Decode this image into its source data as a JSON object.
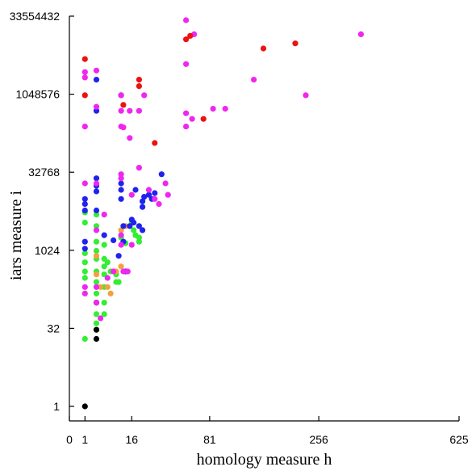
{
  "chart_data": {
    "type": "scatter",
    "title": "",
    "xlabel": "homology measure  h",
    "ylabel": "iars measure  i",
    "x_scale": "sqrt",
    "y_scale": "log2",
    "xlim": [
      0,
      625
    ],
    "ylim": [
      1,
      33554432
    ],
    "x_ticks": [
      0,
      1,
      16,
      81,
      256,
      625
    ],
    "y_ticks": [
      1,
      32,
      1024,
      32768,
      1048576,
      33554432
    ],
    "grid": false,
    "legend": "none",
    "colors": {
      "red": "#ee1111",
      "magenta": "#f026f0",
      "blue": "#2222ee",
      "green": "#33ee33",
      "orange": "#f5a040",
      "black": "#000000"
    },
    "series": [
      {
        "color": "red",
        "points": [
          [
            1,
            5000000
          ],
          [
            1,
            1000000
          ],
          [
            12,
            650000
          ],
          [
            20,
            2000000
          ],
          [
            20,
            1500000
          ],
          [
            30,
            120000
          ],
          [
            56,
            12000000
          ],
          [
            60,
            14000000
          ],
          [
            74,
            350000
          ],
          [
            155,
            8000000
          ],
          [
            210,
            10000000
          ]
        ]
      },
      {
        "color": "magenta",
        "points": [
          [
            56,
            28000000
          ],
          [
            56,
            4000000
          ],
          [
            64,
            15000000
          ],
          [
            350,
            15000000
          ],
          [
            1,
            2800000
          ],
          [
            1,
            2200000
          ],
          [
            1,
            250000
          ],
          [
            1,
            20000
          ],
          [
            3,
            3000000
          ],
          [
            3,
            600000
          ],
          [
            3,
            20000
          ],
          [
            3,
            2500
          ],
          [
            11,
            1000000
          ],
          [
            11,
            500000
          ],
          [
            11,
            250000
          ],
          [
            11,
            30000
          ],
          [
            11,
            25000
          ],
          [
            11,
            2000
          ],
          [
            11,
            1300
          ],
          [
            12,
            240000
          ],
          [
            15,
            500000
          ],
          [
            15,
            150000
          ],
          [
            16,
            1300
          ],
          [
            20,
            40000
          ],
          [
            20,
            500000
          ],
          [
            23,
            1000000
          ],
          [
            26,
            15000
          ],
          [
            30,
            10000
          ],
          [
            33,
            8000
          ],
          [
            38,
            20000
          ],
          [
            40,
            12000
          ],
          [
            56,
            450000
          ],
          [
            56,
            250000
          ],
          [
            62,
            350000
          ],
          [
            85,
            550000
          ],
          [
            100,
            550000
          ],
          [
            140,
            2000000
          ],
          [
            230,
            1000000
          ],
          [
            1,
            200
          ],
          [
            1,
            150
          ],
          [
            3,
            200
          ],
          [
            3,
            100
          ],
          [
            4,
            50
          ],
          [
            6,
            300
          ],
          [
            8,
            400
          ],
          [
            12,
            400
          ],
          [
            14,
            400
          ],
          [
            5,
            5000
          ],
          [
            16,
            12000
          ]
        ]
      },
      {
        "color": "blue",
        "points": [
          [
            1,
            10000
          ],
          [
            1,
            8000
          ],
          [
            1,
            6000
          ],
          [
            1,
            1500
          ],
          [
            1,
            1100
          ],
          [
            3,
            2000000
          ],
          [
            3,
            500000
          ],
          [
            3,
            25000
          ],
          [
            3,
            18000
          ],
          [
            3,
            14000
          ],
          [
            3,
            6000
          ],
          [
            5,
            2000
          ],
          [
            8,
            1600
          ],
          [
            10,
            800
          ],
          [
            11,
            1000000
          ],
          [
            11,
            20000
          ],
          [
            11,
            15000
          ],
          [
            11,
            10000
          ],
          [
            12,
            3000
          ],
          [
            12,
            1500
          ],
          [
            13,
            400
          ],
          [
            15,
            3000
          ],
          [
            16,
            4000
          ],
          [
            17,
            3500
          ],
          [
            18,
            15000
          ],
          [
            20,
            3000
          ],
          [
            22,
            2500
          ],
          [
            22,
            7000
          ],
          [
            22,
            9000
          ],
          [
            23,
            11000
          ],
          [
            26,
            12000
          ],
          [
            28,
            10000
          ],
          [
            30,
            13000
          ],
          [
            35,
            30000
          ]
        ]
      },
      {
        "color": "green",
        "points": [
          [
            1,
            5500
          ],
          [
            1,
            3500
          ],
          [
            1,
            900
          ],
          [
            1,
            600
          ],
          [
            1,
            400
          ],
          [
            1,
            300
          ],
          [
            1,
            20
          ],
          [
            3,
            5000
          ],
          [
            3,
            3000
          ],
          [
            3,
            1500
          ],
          [
            3,
            1000
          ],
          [
            3,
            700
          ],
          [
            3,
            400
          ],
          [
            3,
            250
          ],
          [
            3,
            150
          ],
          [
            3,
            100
          ],
          [
            3,
            60
          ],
          [
            3,
            40
          ],
          [
            3,
            30
          ],
          [
            5,
            1300
          ],
          [
            5,
            700
          ],
          [
            5,
            500
          ],
          [
            5,
            350
          ],
          [
            5,
            200
          ],
          [
            5,
            100
          ],
          [
            5,
            60
          ],
          [
            6,
            600
          ],
          [
            7,
            400
          ],
          [
            9,
            250
          ],
          [
            9,
            350
          ],
          [
            10,
            250
          ],
          [
            11,
            2000
          ],
          [
            11,
            1800
          ],
          [
            12,
            1500
          ],
          [
            13,
            1400
          ],
          [
            16,
            3500
          ],
          [
            17,
            2500
          ],
          [
            18,
            2000
          ],
          [
            20,
            1500
          ],
          [
            20,
            1800
          ]
        ]
      },
      {
        "color": "orange",
        "points": [
          [
            3,
            800
          ],
          [
            3,
            350
          ],
          [
            4,
            200
          ],
          [
            6,
            200
          ],
          [
            7,
            150
          ],
          [
            9,
            400
          ],
          [
            11,
            500
          ],
          [
            11,
            2500
          ],
          [
            13,
            3000
          ]
        ]
      },
      {
        "color": "black",
        "points": [
          [
            1,
            1
          ],
          [
            3,
            20
          ],
          [
            3,
            30
          ],
          [
            3,
            100
          ]
        ]
      }
    ]
  }
}
